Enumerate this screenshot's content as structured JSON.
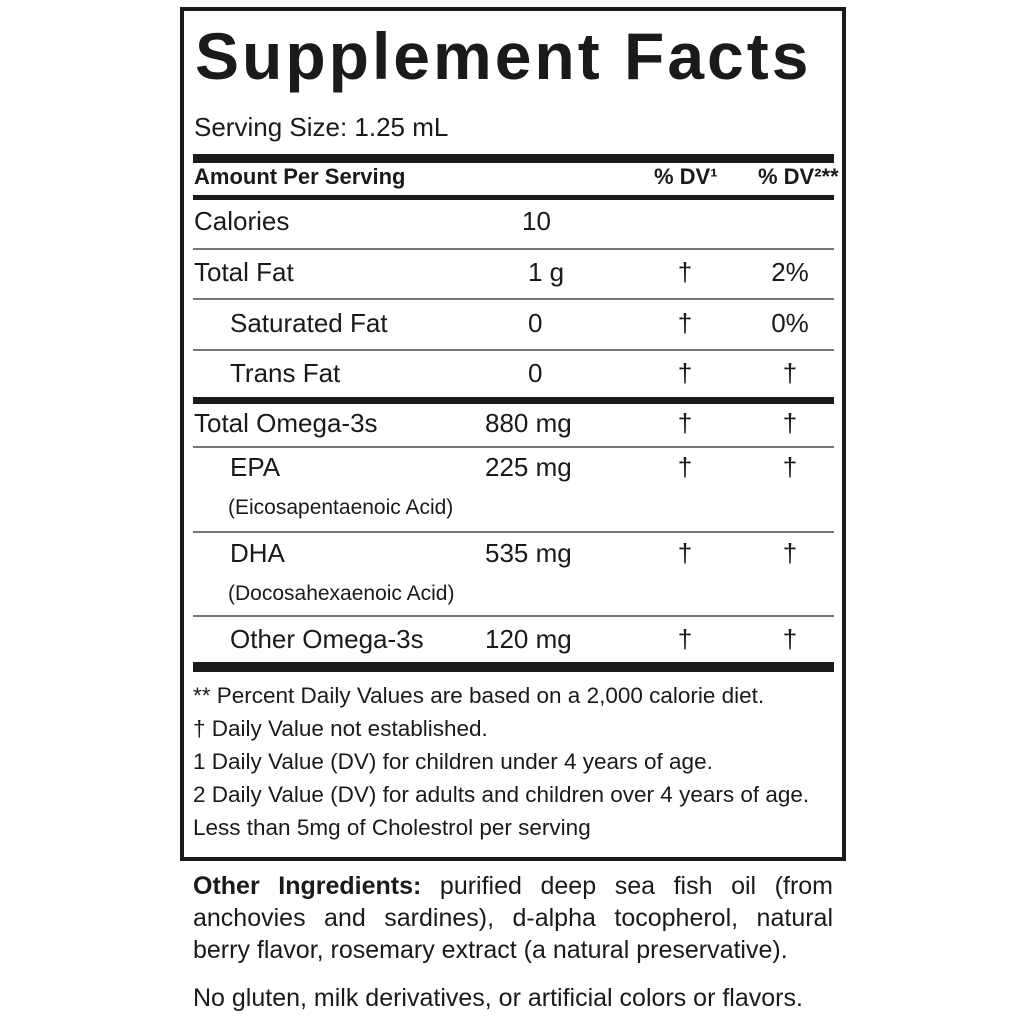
{
  "title": "Supplement Facts",
  "serving_size": "Serving Size: 1.25 mL",
  "header": {
    "amount": "Amount Per Serving",
    "dv1": "% DV¹",
    "dv2": "% DV²**"
  },
  "rows": [
    {
      "name": "Calories",
      "amount": "10",
      "dv1": "",
      "dv2": ""
    },
    {
      "name": "Total Fat",
      "amount": "1 g",
      "dv1": "†",
      "dv2": "2%"
    },
    {
      "name": "Saturated Fat",
      "amount": "0",
      "dv1": "†",
      "dv2": "0%"
    },
    {
      "name": "Trans Fat",
      "amount": "0",
      "dv1": "†",
      "dv2": "†"
    },
    {
      "name": "Total Omega-3s",
      "amount": "880 mg",
      "dv1": "†",
      "dv2": "†"
    },
    {
      "name": "EPA",
      "sub": "(Eicosapentaenoic Acid)",
      "amount": "225 mg",
      "dv1": "†",
      "dv2": "†"
    },
    {
      "name": "DHA",
      "sub": "(Docosahexaenoic Acid)",
      "amount": "535 mg",
      "dv1": "†",
      "dv2": "†"
    },
    {
      "name": "Other Omega-3s",
      "amount": "120 mg",
      "dv1": "†",
      "dv2": "†"
    }
  ],
  "footnotes": [
    "** Percent Daily Values are based on a 2,000 calorie diet.",
    "†  Daily Value not established.",
    "1  Daily Value (DV) for children under 4 years of age.",
    "2  Daily Value (DV) for adults and children over 4 years of age.",
    "Less than 5mg of Cholestrol per serving"
  ],
  "other_ingredients": {
    "label": "Other Ingredients:",
    "text": " purified deep sea fish oil (from anchovies and sardines), d-alpha tocopherol, natural berry flavor, rosemary extract (a natural preservative)."
  },
  "allergen_note": "No gluten, milk derivatives, or artificial colors or flavors."
}
